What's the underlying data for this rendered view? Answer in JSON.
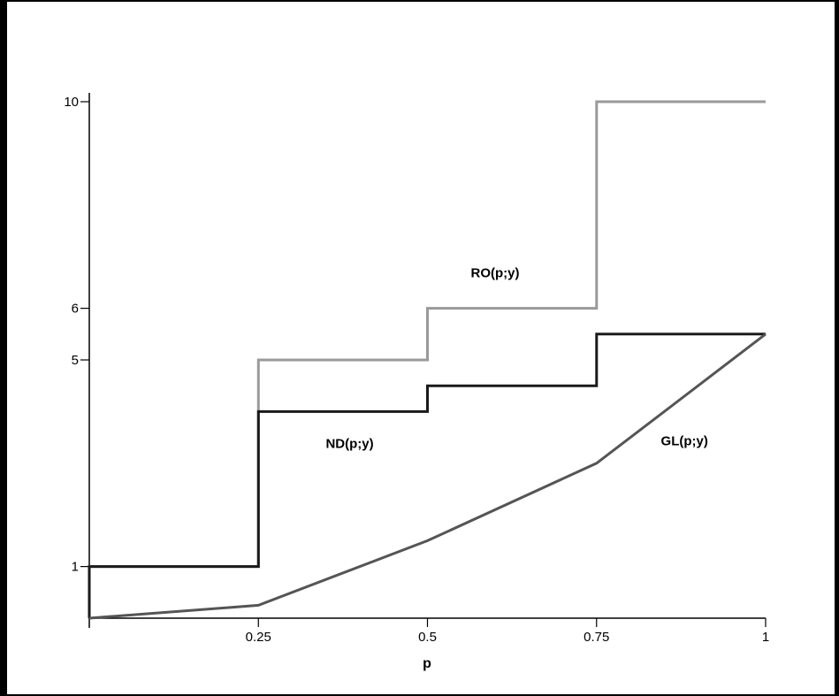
{
  "chart_data": {
    "type": "line",
    "title": "",
    "xlabel": "p",
    "ylabel": "",
    "xlim": [
      0,
      1
    ],
    "ylim": [
      0,
      10
    ],
    "grid": false,
    "x_ticks": [
      {
        "value": 0.25,
        "label": "0.25"
      },
      {
        "value": 0.5,
        "label": "0.5"
      },
      {
        "value": 0.75,
        "label": "0.75"
      },
      {
        "value": 1,
        "label": "1"
      }
    ],
    "y_ticks": [
      {
        "value": 1,
        "label": "1"
      },
      {
        "value": 5,
        "label": "5"
      },
      {
        "value": 6,
        "label": "6"
      },
      {
        "value": 10,
        "label": "10"
      }
    ],
    "series": [
      {
        "name": "RO(p;y)",
        "color": "#9a9a9a",
        "points": [
          [
            0,
            0
          ],
          [
            0,
            1
          ],
          [
            0.25,
            1
          ],
          [
            0.25,
            5
          ],
          [
            0.5,
            5
          ],
          [
            0.5,
            6
          ],
          [
            0.75,
            6
          ],
          [
            0.75,
            10
          ],
          [
            1,
            10
          ]
        ]
      },
      {
        "name": "ND(p;y)",
        "color": "#1a1a1a",
        "points": [
          [
            0,
            0
          ],
          [
            0,
            1
          ],
          [
            0.25,
            1
          ],
          [
            0.25,
            4
          ],
          [
            0.5,
            4
          ],
          [
            0.5,
            4.5
          ],
          [
            0.75,
            4.5
          ],
          [
            0.75,
            5.5
          ],
          [
            1,
            5.5
          ]
        ]
      },
      {
        "name": "GL(p;y)",
        "color": "#555555",
        "points": [
          [
            0,
            0
          ],
          [
            0.25,
            0.25
          ],
          [
            0.5,
            1.5
          ],
          [
            0.75,
            3
          ],
          [
            1,
            5.5
          ]
        ]
      }
    ],
    "annotations": [
      {
        "text": "RO(p;y)",
        "x": 0.6,
        "y": 6.6
      },
      {
        "text": "ND(p;y)",
        "x": 0.385,
        "y": 3.3
      },
      {
        "text": "GL(p;y)",
        "x": 0.88,
        "y": 3.35
      }
    ]
  }
}
